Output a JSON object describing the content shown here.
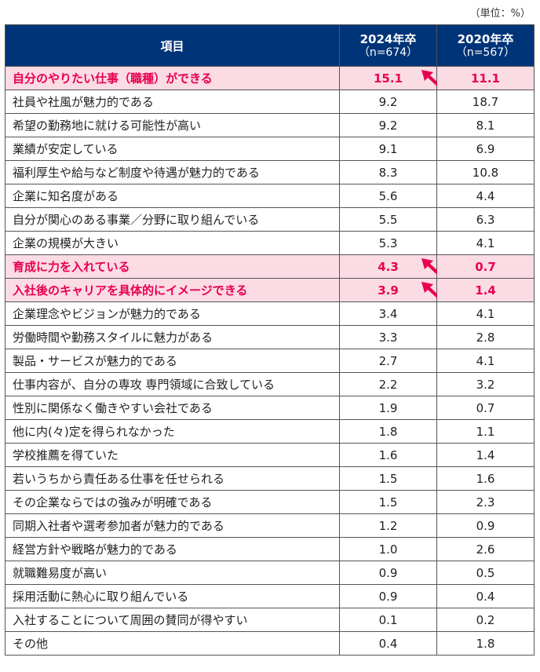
{
  "unit_label": "（単位：%）",
  "colors": {
    "header_bg": "#003478",
    "highlight_bg": "#fbdbe4",
    "highlight_text": "#e8004e",
    "arrow": "#e8004e"
  },
  "header": {
    "item": "項目",
    "col1_year": "2024年卒",
    "col1_n": "（n=674）",
    "col2_year": "2020年卒",
    "col2_n": "（n=567）"
  },
  "chart_data": {
    "type": "table",
    "columns": [
      "項目",
      "2024年卒（n=674）",
      "2020年卒（n=567）"
    ],
    "rows": [
      {
        "item": "自分のやりたい仕事（職種）ができる",
        "y2024": "15.1",
        "y2020": "11.1",
        "highlight": true,
        "arrow": true
      },
      {
        "item": "社員や社風が魅力的である",
        "y2024": "9.2",
        "y2020": "18.7"
      },
      {
        "item": "希望の勤務地に就ける可能性が高い",
        "y2024": "9.2",
        "y2020": "8.1"
      },
      {
        "item": "業績が安定している",
        "y2024": "9.1",
        "y2020": "6.9"
      },
      {
        "item": "福利厚生や給与など制度や待遇が魅力的である",
        "y2024": "8.3",
        "y2020": "10.8"
      },
      {
        "item": "企業に知名度がある",
        "y2024": "5.6",
        "y2020": "4.4"
      },
      {
        "item": "自分が関心のある事業／分野に取り組んでいる",
        "y2024": "5.5",
        "y2020": "6.3"
      },
      {
        "item": "企業の規模が大きい",
        "y2024": "5.3",
        "y2020": "4.1"
      },
      {
        "item": "育成に力を入れている",
        "y2024": "4.3",
        "y2020": "0.7",
        "highlight": true,
        "arrow": true
      },
      {
        "item": "入社後のキャリアを具体的にイメージできる",
        "y2024": "3.9",
        "y2020": "1.4",
        "highlight": true,
        "arrow": true
      },
      {
        "item": "企業理念やビジョンが魅力的である",
        "y2024": "3.4",
        "y2020": "4.1"
      },
      {
        "item": "労働時間や勤務スタイルに魅力がある",
        "y2024": "3.3",
        "y2020": "2.8"
      },
      {
        "item": "製品・サービスが魅力的である",
        "y2024": "2.7",
        "y2020": "4.1"
      },
      {
        "item": "仕事内容が、自分の専攻 専門領域に合致している",
        "y2024": "2.2",
        "y2020": "3.2"
      },
      {
        "item": "性別に関係なく働きやすい会社である",
        "y2024": "1.9",
        "y2020": "0.7"
      },
      {
        "item": "他に内(々)定を得られなかった",
        "y2024": "1.8",
        "y2020": "1.1"
      },
      {
        "item": "学校推薦を得ていた",
        "y2024": "1.6",
        "y2020": "1.4"
      },
      {
        "item": "若いうちから責任ある仕事を任せられる",
        "y2024": "1.5",
        "y2020": "1.6"
      },
      {
        "item": "その企業ならではの強みが明確である",
        "y2024": "1.5",
        "y2020": "2.3"
      },
      {
        "item": "同期入社者や選考参加者が魅力的である",
        "y2024": "1.2",
        "y2020": "0.9"
      },
      {
        "item": "経営方針や戦略が魅力的である",
        "y2024": "1.0",
        "y2020": "2.6"
      },
      {
        "item": "就職難易度が高い",
        "y2024": "0.9",
        "y2020": "0.5"
      },
      {
        "item": "採用活動に熱心に取り組んでいる",
        "y2024": "0.9",
        "y2020": "0.4"
      },
      {
        "item": "入社することについて周囲の賛同が得やすい",
        "y2024": "0.1",
        "y2020": "0.2"
      },
      {
        "item": "その他",
        "y2024": "0.4",
        "y2020": "1.8"
      }
    ]
  }
}
